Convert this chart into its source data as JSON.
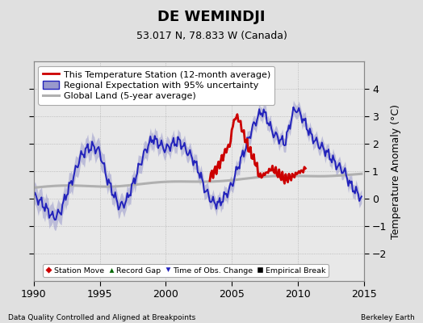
{
  "title": "DE WEMINDJI",
  "subtitle": "53.017 N, 78.833 W (Canada)",
  "xlabel_left": "Data Quality Controlled and Aligned at Breakpoints",
  "xlabel_right": "Berkeley Earth",
  "ylabel": "Temperature Anomaly (°C)",
  "xlim": [
    1990,
    2015
  ],
  "ylim": [
    -3,
    5
  ],
  "yticks": [
    -2,
    -1,
    0,
    1,
    2,
    3,
    4
  ],
  "xticks": [
    1990,
    1995,
    2000,
    2005,
    2010,
    2015
  ],
  "bg_color": "#e0e0e0",
  "plot_bg_color": "#e8e8e8",
  "regional_color": "#2222bb",
  "regional_fill_color": "#9999cc",
  "station_color": "#cc0000",
  "global_color": "#b0b0b0",
  "title_fontsize": 13,
  "subtitle_fontsize": 9,
  "axis_fontsize": 9,
  "legend_fontsize": 8
}
